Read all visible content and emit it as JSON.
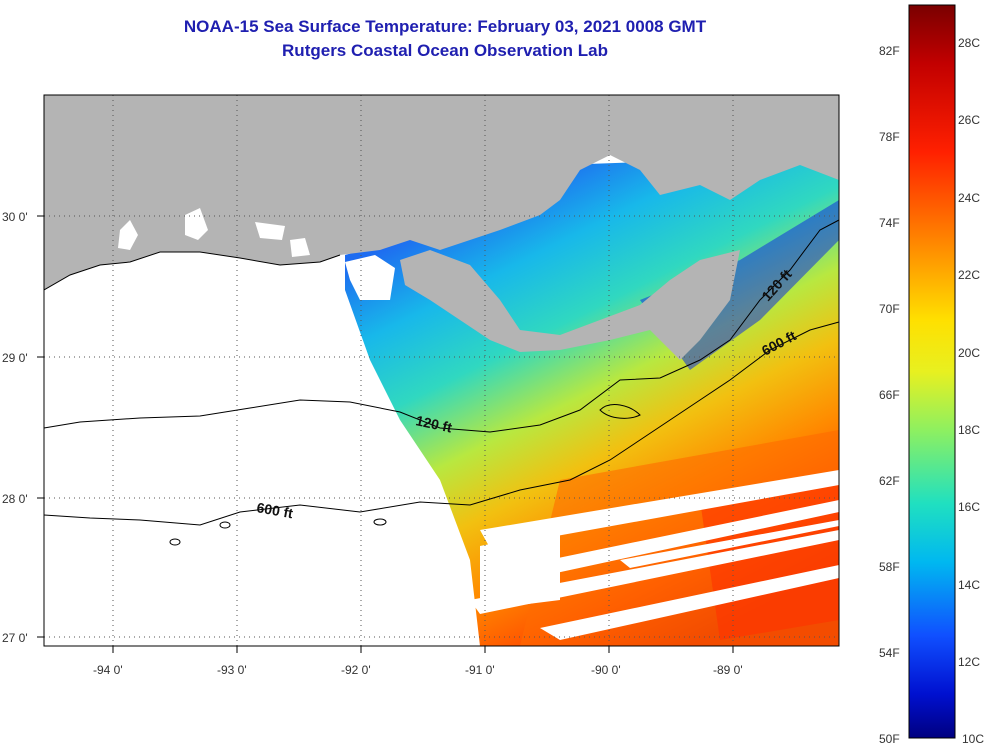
{
  "title": "NOAA-15 Sea Surface Temperature:  February 03, 2021 0008 GMT",
  "subtitle": "Rutgers Coastal Ocean Observation Lab",
  "longitude_labels": [
    "-94 0'",
    "-93 0'",
    "-92 0'",
    "-91 0'",
    "-90 0'",
    "-89 0'"
  ],
  "latitude_labels": [
    "30 0'",
    "29 0'",
    "28 0'",
    "27 0'"
  ],
  "contour_labels": [
    "120 ft",
    "600 ft",
    "120 ft",
    "600 ft"
  ],
  "colorbar": {
    "fahrenheit": [
      "82F",
      "78F",
      "74F",
      "70F",
      "66F",
      "62F",
      "58F",
      "54F",
      "50F"
    ],
    "celsius": [
      "28C",
      "26C",
      "24C",
      "22C",
      "20C",
      "18C",
      "16C",
      "14C",
      "12C",
      "10C"
    ],
    "range_c": [
      10,
      29
    ]
  },
  "colors": {
    "land": "#b4b4b4",
    "title": "#1f1fb0",
    "no_data": "#ffffff"
  }
}
